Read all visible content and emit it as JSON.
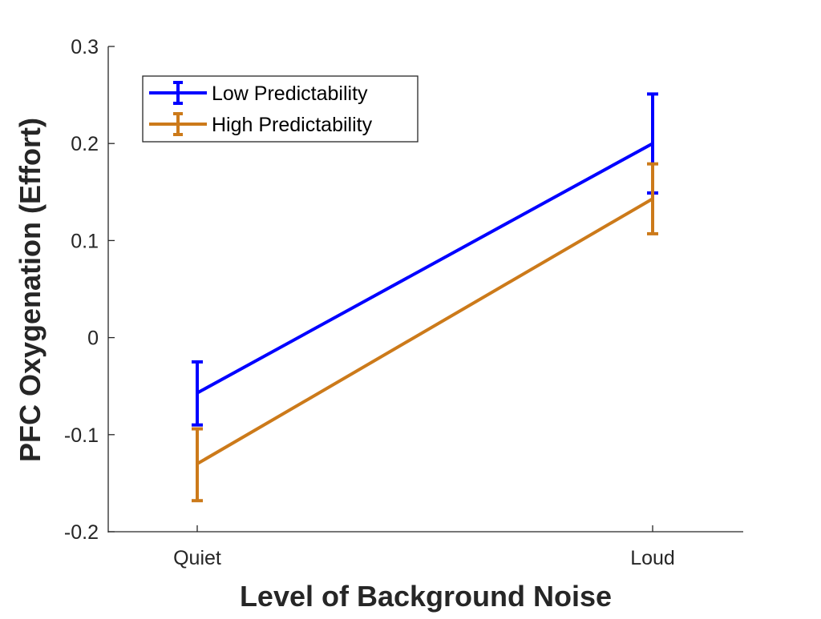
{
  "chart_data": {
    "type": "line",
    "title": "",
    "xlabel": "Level of Background Noise",
    "ylabel": "PFC Oxygenation (Effort)",
    "categories": [
      "Quiet",
      "Loud"
    ],
    "ylim": [
      -0.2,
      0.3
    ],
    "yticks": [
      -0.2,
      -0.1,
      0,
      0.1,
      0.2,
      0.3
    ],
    "ytick_labels": [
      "-0.2",
      "-0.1",
      "0",
      "0.1",
      "0.2",
      "0.3"
    ],
    "grid": false,
    "legend_position": "top-left",
    "error_bars": true,
    "series": [
      {
        "name": "Low Predictability",
        "color": "#0000FF",
        "values": [
          -0.057,
          0.2
        ],
        "error_low": [
          -0.09,
          0.149
        ],
        "error_high": [
          -0.025,
          0.251
        ]
      },
      {
        "name": "High Predictability",
        "color": "#CC7A1A",
        "values": [
          -0.13,
          0.143
        ],
        "error_low": [
          -0.168,
          0.107
        ],
        "error_high": [
          -0.094,
          0.179
        ]
      }
    ]
  }
}
